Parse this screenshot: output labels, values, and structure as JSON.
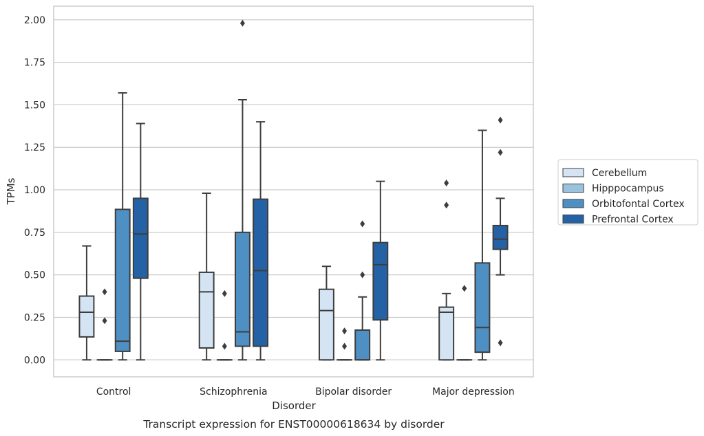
{
  "caption": "Transcript expression for ENST00000618634 by disorder",
  "chart_data": {
    "type": "box",
    "xlabel": "Disorder",
    "ylabel": "TPMs",
    "ylim": [
      -0.1,
      2.08
    ],
    "yticks": [
      "0.00",
      "0.25",
      "0.50",
      "0.75",
      "1.00",
      "1.25",
      "1.50",
      "1.75",
      "2.00"
    ],
    "grid": true,
    "legend_placement": "right",
    "categories": [
      "Control",
      "Schizophrenia",
      "Bipolar disorder",
      "Major depression"
    ],
    "series": [
      {
        "name": "Cerebellum",
        "color": "#d4e4f3",
        "boxes": [
          {
            "whislo": 0.0,
            "q1": 0.135,
            "med": 0.28,
            "q3": 0.375,
            "whishi": 0.67,
            "fliers": []
          },
          {
            "whislo": 0.0,
            "q1": 0.07,
            "med": 0.4,
            "q3": 0.515,
            "whishi": 0.98,
            "fliers": []
          },
          {
            "whislo": 0.0,
            "q1": 0.0,
            "med": 0.29,
            "q3": 0.415,
            "whishi": 0.55,
            "fliers": []
          },
          {
            "whislo": 0.0,
            "q1": 0.0,
            "med": 0.28,
            "q3": 0.31,
            "whishi": 0.39,
            "fliers": [
              0.91,
              1.04
            ]
          }
        ]
      },
      {
        "name": "Hipppocampus",
        "color": "#9ac2dd",
        "boxes": [
          {
            "whislo": 0.0,
            "q1": 0.0,
            "med": 0.0,
            "q3": 0.0,
            "whishi": 0.0,
            "fliers": [
              0.23,
              0.4
            ]
          },
          {
            "whislo": 0.0,
            "q1": 0.0,
            "med": 0.0,
            "q3": 0.0,
            "whishi": 0.0,
            "fliers": [
              0.08,
              0.39
            ]
          },
          {
            "whislo": 0.0,
            "q1": 0.0,
            "med": 0.0,
            "q3": 0.0,
            "whishi": 0.0,
            "fliers": [
              0.08,
              0.17
            ]
          },
          {
            "whislo": 0.0,
            "q1": 0.0,
            "med": 0.0,
            "q3": 0.0,
            "whishi": 0.0,
            "fliers": [
              0.42
            ]
          }
        ]
      },
      {
        "name": "Orbitofontal Cortex",
        "color": "#4f90c4",
        "boxes": [
          {
            "whislo": 0.0,
            "q1": 0.05,
            "med": 0.11,
            "q3": 0.885,
            "whishi": 1.57,
            "fliers": []
          },
          {
            "whislo": 0.0,
            "q1": 0.08,
            "med": 0.165,
            "q3": 0.75,
            "whishi": 1.53,
            "fliers": [
              1.98
            ]
          },
          {
            "whislo": 0.0,
            "q1": 0.0,
            "med": 0.0,
            "q3": 0.175,
            "whishi": 0.37,
            "fliers": [
              0.5,
              0.8
            ]
          },
          {
            "whislo": 0.0,
            "q1": 0.045,
            "med": 0.19,
            "q3": 0.57,
            "whishi": 1.35,
            "fliers": []
          }
        ]
      },
      {
        "name": "Prefrontal Cortex",
        "color": "#2462a5",
        "boxes": [
          {
            "whislo": 0.0,
            "q1": 0.48,
            "med": 0.74,
            "q3": 0.95,
            "whishi": 1.39,
            "fliers": []
          },
          {
            "whislo": 0.0,
            "q1": 0.08,
            "med": 0.525,
            "q3": 0.945,
            "whishi": 1.4,
            "fliers": []
          },
          {
            "whislo": 0.0,
            "q1": 0.235,
            "med": 0.56,
            "q3": 0.69,
            "whishi": 1.05,
            "fliers": []
          },
          {
            "whislo": 0.5,
            "q1": 0.65,
            "med": 0.71,
            "q3": 0.79,
            "whishi": 0.95,
            "fliers": [
              0.1,
              1.22,
              1.41
            ]
          }
        ]
      }
    ]
  }
}
